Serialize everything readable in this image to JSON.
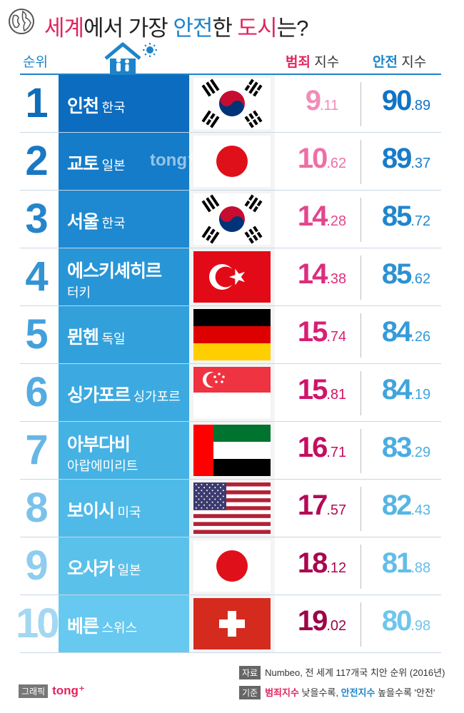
{
  "header": {
    "title_parts": [
      "세계",
      "에서 가장 ",
      "안전",
      "한 ",
      "도시",
      "는?"
    ],
    "rank_label": "순위",
    "crime_label_strong": "범죄",
    "crime_label_rest": " 지수",
    "safety_label_strong": "안전",
    "safety_label_rest": " 지수"
  },
  "colors": {
    "accent_blue": "#1d84c9",
    "accent_red": "#e0245e"
  },
  "chart_data": {
    "type": "table",
    "title": "세계에서 가장 안전한 도시는?",
    "columns": [
      "순위",
      "도시",
      "범죄 지수",
      "안전 지수"
    ],
    "rows": [
      {
        "rank": "1",
        "city": "인천",
        "country": "한국",
        "flag": "korea",
        "crime_int": "9",
        "crime_dec": ".11",
        "safety_int": "90",
        "safety_dec": ".89",
        "crime": 9.11,
        "safety": 90.89
      },
      {
        "rank": "2",
        "city": "교토",
        "country": "일본",
        "flag": "japan",
        "crime_int": "10",
        "crime_dec": ".62",
        "safety_int": "89",
        "safety_dec": ".37",
        "crime": 10.62,
        "safety": 89.37
      },
      {
        "rank": "3",
        "city": "서울",
        "country": "한국",
        "flag": "korea",
        "crime_int": "14",
        "crime_dec": ".28",
        "safety_int": "85",
        "safety_dec": ".72",
        "crime": 14.28,
        "safety": 85.72
      },
      {
        "rank": "4",
        "city": "에스키셰히르",
        "country": "터키",
        "flag": "turkey",
        "crime_int": "14",
        "crime_dec": ".38",
        "safety_int": "85",
        "safety_dec": ".62",
        "crime": 14.38,
        "safety": 85.62
      },
      {
        "rank": "5",
        "city": "뮌헨",
        "country": "독일",
        "flag": "germany",
        "crime_int": "15",
        "crime_dec": ".74",
        "safety_int": "84",
        "safety_dec": ".26",
        "crime": 15.74,
        "safety": 84.26
      },
      {
        "rank": "6",
        "city": "싱가포르",
        "country": "싱가포르",
        "flag": "singapore",
        "crime_int": "15",
        "crime_dec": ".81",
        "safety_int": "84",
        "safety_dec": ".19",
        "crime": 15.81,
        "safety": 84.19
      },
      {
        "rank": "7",
        "city": "아부다비",
        "country": "아랍에미리트",
        "flag": "uae",
        "crime_int": "16",
        "crime_dec": ".71",
        "safety_int": "83",
        "safety_dec": ".29",
        "crime": 16.71,
        "safety": 83.29
      },
      {
        "rank": "8",
        "city": "보이시",
        "country": "미국",
        "flag": "usa",
        "crime_int": "17",
        "crime_dec": ".57",
        "safety_int": "82",
        "safety_dec": ".43",
        "crime": 17.57,
        "safety": 82.43
      },
      {
        "rank": "9",
        "city": "오사카",
        "country": "일본",
        "flag": "japan",
        "crime_int": "18",
        "crime_dec": ".12",
        "safety_int": "81",
        "safety_dec": ".88",
        "crime": 18.12,
        "safety": 81.88
      },
      {
        "rank": "10",
        "city": "베른",
        "country": "스위스",
        "flag": "switzerland",
        "crime_int": "19",
        "crime_dec": ".02",
        "safety_int": "80",
        "safety_dec": ".98",
        "crime": 19.02,
        "safety": 80.98
      }
    ]
  },
  "footer": {
    "source_tag": "자료",
    "source_text": "Numbeo, 전 세계 117개국 치안 순위 (2016년)",
    "criteria_tag": "기준",
    "criteria_crime": "범죄지수",
    "criteria_mid": " 낮을수록, ",
    "criteria_safety": "안전지수",
    "criteria_end": " 높을수록 '안전'",
    "credit_tag": "그래픽",
    "credit_brand": "tong⁺"
  },
  "watermark": "tong⁺"
}
